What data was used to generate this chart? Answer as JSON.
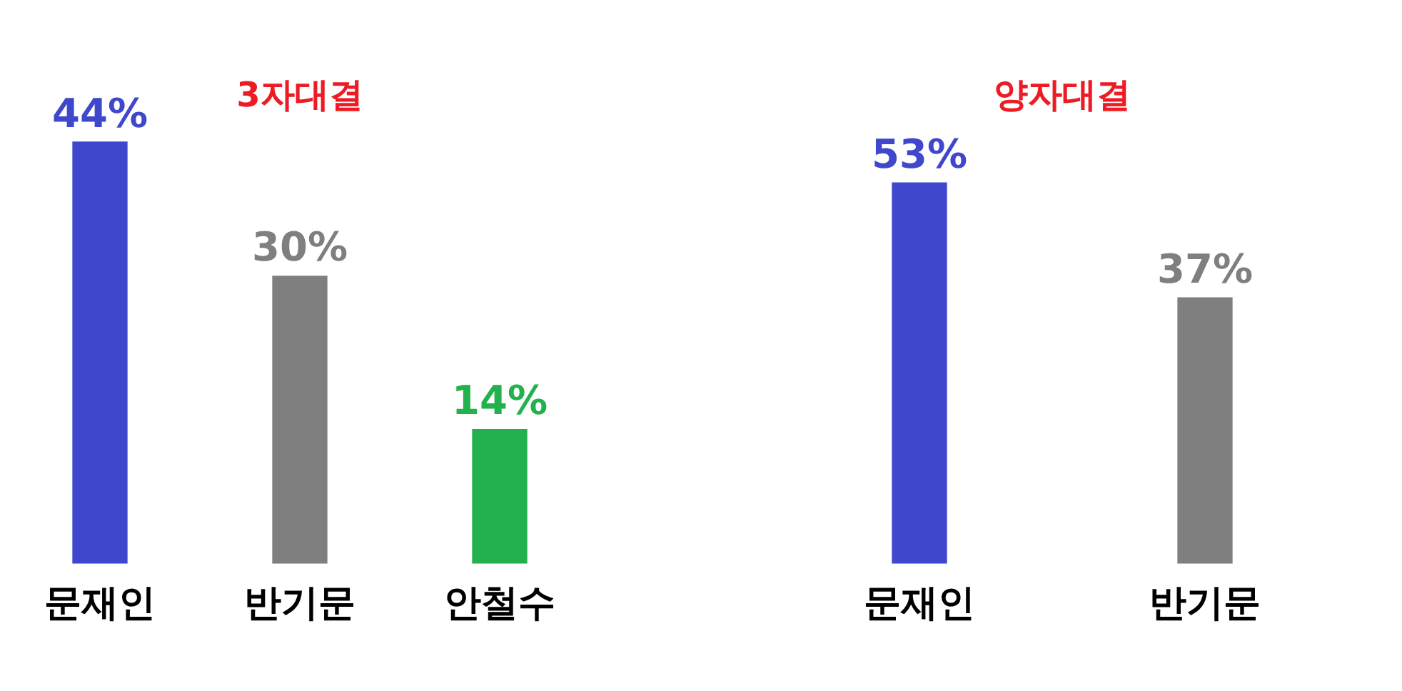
{
  "chart_data": [
    {
      "type": "bar",
      "title": "3자대결",
      "categories": [
        "문재인",
        "반기문",
        "안철수"
      ],
      "values": [
        44,
        30,
        14
      ],
      "colors": [
        "#3f48cc",
        "#7f7f7f",
        "#22b14c"
      ],
      "value_labels": [
        "44%",
        "30%",
        "14%"
      ],
      "tick_labels": "x",
      "grid": false,
      "legend": false
    },
    {
      "type": "bar",
      "title": "양자대결",
      "categories": [
        "문재인",
        "반기문"
      ],
      "values": [
        53,
        37
      ],
      "colors": [
        "#3f48cc",
        "#7f7f7f"
      ],
      "value_labels": [
        "53%",
        "37%"
      ],
      "tick_labels": "x",
      "grid": false,
      "legend": false
    }
  ]
}
